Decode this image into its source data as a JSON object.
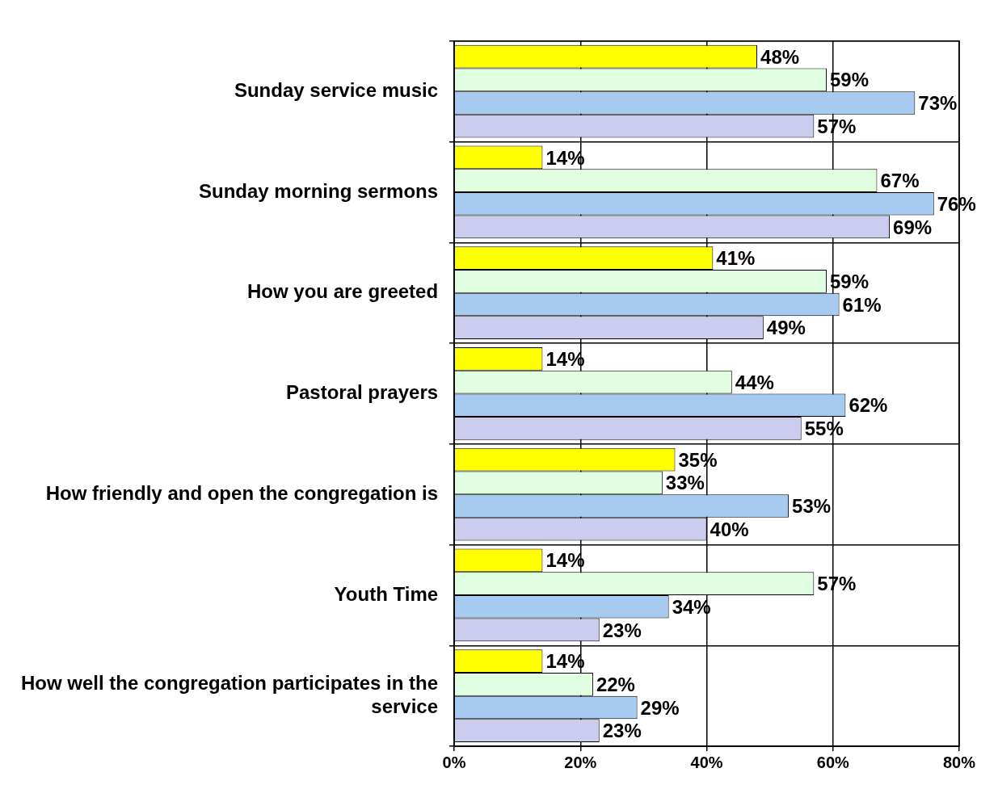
{
  "chart_data": {
    "type": "bar",
    "orientation": "horizontal",
    "categories": [
      "Sunday service music",
      "Sunday morning sermons",
      "How you are greeted",
      "Pastoral prayers",
      "How friendly and open the congregation is",
      "Youth Time",
      "How well the congregation participates in the service"
    ],
    "series": [
      {
        "color": "#ffff00",
        "values": [
          48,
          14,
          41,
          14,
          35,
          14,
          14
        ],
        "value_labels": [
          "48%",
          "14%",
          "41%",
          "14%",
          "35%",
          "14%",
          "14%"
        ]
      },
      {
        "color": "#e0ffe0",
        "values": [
          59,
          67,
          59,
          44,
          33,
          57,
          22
        ],
        "value_labels": [
          "59%",
          "67%",
          "59%",
          "44%",
          "33%",
          "57%",
          "22%"
        ]
      },
      {
        "color": "#a6caf0",
        "values": [
          73,
          76,
          61,
          62,
          53,
          34,
          29
        ],
        "value_labels": [
          "73%",
          "76%",
          "61%",
          "62%",
          "53%",
          "34%",
          "29%"
        ]
      },
      {
        "color": "#ccccee",
        "values": [
          57,
          69,
          49,
          55,
          40,
          23,
          23
        ],
        "value_labels": [
          "57%",
          "69%",
          "49%",
          "55%",
          "40%",
          "23%",
          "23%"
        ]
      }
    ],
    "xlim": [
      0,
      80
    ],
    "xticks": [
      {
        "value": 0,
        "label": "0%"
      },
      {
        "value": 20,
        "label": "20%"
      },
      {
        "value": 40,
        "label": "40%"
      },
      {
        "value": 60,
        "label": "60%"
      },
      {
        "value": 80,
        "label": "80%"
      }
    ],
    "grid": true,
    "legend": false
  }
}
